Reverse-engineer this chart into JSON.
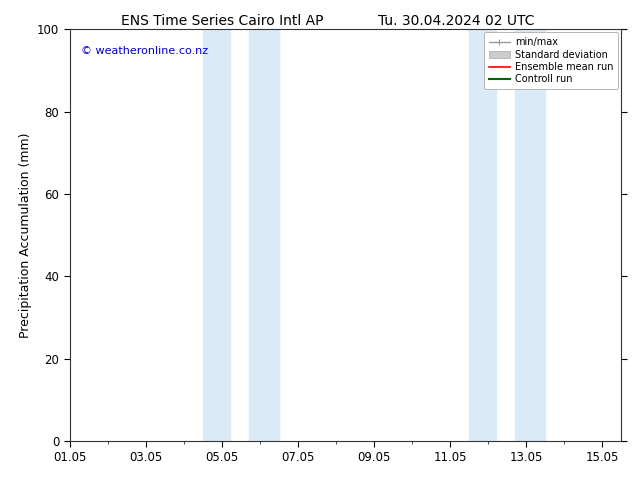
{
  "title_left": "ENS Time Series Cairo Intl AP",
  "title_right": "Tu. 30.04.2024 02 UTC",
  "ylabel": "Precipitation Accumulation (mm)",
  "watermark": "© weatheronline.co.nz",
  "watermark_color": "#0000cc",
  "ylim": [
    0,
    100
  ],
  "yticks": [
    0,
    20,
    40,
    60,
    80,
    100
  ],
  "xlim": [
    0,
    14.5
  ],
  "xtick_labels": [
    "01.05",
    "03.05",
    "05.05",
    "07.05",
    "09.05",
    "11.05",
    "13.05",
    "15.05"
  ],
  "xtick_positions": [
    0,
    2,
    4,
    6,
    8,
    10,
    12,
    14
  ],
  "shaded_bands": [
    {
      "xstart": 3.5,
      "xend": 4.2
    },
    {
      "xstart": 4.7,
      "xend": 5.5
    },
    {
      "xstart": 10.5,
      "xend": 11.2
    },
    {
      "xstart": 11.7,
      "xend": 12.5
    }
  ],
  "shade_color": "#daeaf7",
  "legend_items": [
    {
      "label": "min/max",
      "color": "#999999",
      "lw": 1,
      "type": "minmax"
    },
    {
      "label": "Standard deviation",
      "color": "#cccccc",
      "lw": 5,
      "type": "band"
    },
    {
      "label": "Ensemble mean run",
      "color": "#ff0000",
      "lw": 1.2,
      "type": "line"
    },
    {
      "label": "Controll run",
      "color": "#006400",
      "lw": 1.5,
      "type": "line"
    }
  ],
  "bg_color": "#ffffff",
  "plot_bg_color": "#ffffff",
  "title_fontsize": 10,
  "tick_fontsize": 8.5,
  "label_fontsize": 9,
  "watermark_fontsize": 8
}
